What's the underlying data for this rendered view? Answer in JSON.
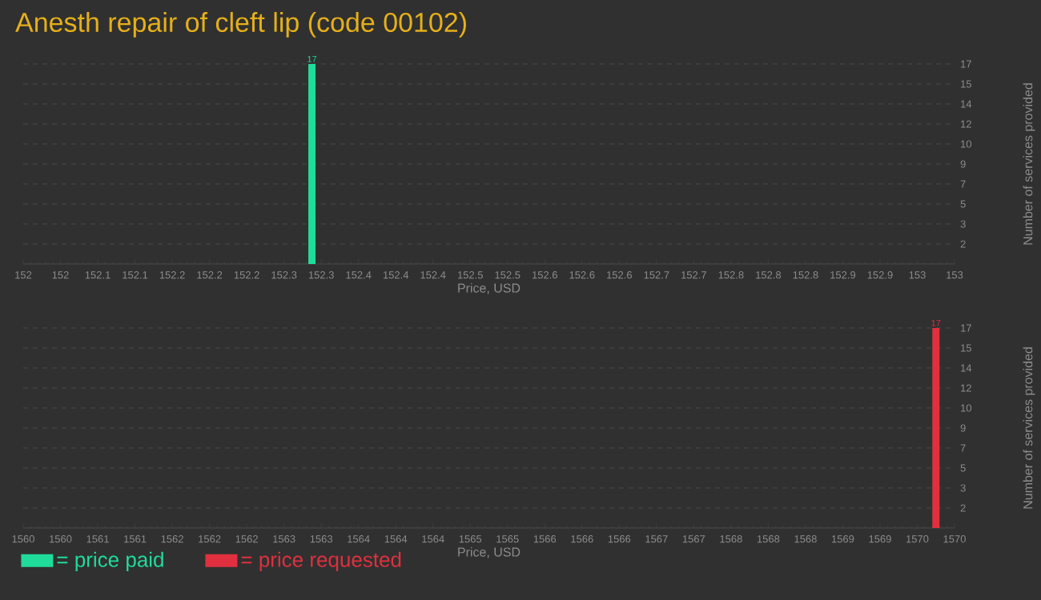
{
  "chart_data": [
    {
      "type": "bar",
      "title": "Anesth repair of cleft lip (code 00102)",
      "xlabel": "Price, USD",
      "ylabel": "Number of services provided",
      "x": [
        152.31
      ],
      "series": [
        {
          "name": "= price paid",
          "color": "#1fdc9b",
          "values": [
            17
          ]
        }
      ],
      "xlim": [
        152,
        153
      ],
      "xticks": [
        {
          "value": 152,
          "label": "152"
        },
        {
          "value": 152.04,
          "label": "152"
        },
        {
          "value": 152.08,
          "label": "152.1"
        },
        {
          "value": 152.12,
          "label": "152.1"
        },
        {
          "value": 152.16,
          "label": "152.2"
        },
        {
          "value": 152.2,
          "label": "152.2"
        },
        {
          "value": 152.24,
          "label": "152.2"
        },
        {
          "value": 152.28,
          "label": "152.3"
        },
        {
          "value": 152.32,
          "label": "152.3"
        },
        {
          "value": 152.36,
          "label": "152.4"
        },
        {
          "value": 152.4,
          "label": "152.4"
        },
        {
          "value": 152.44,
          "label": "152.4"
        },
        {
          "value": 152.48,
          "label": "152.5"
        },
        {
          "value": 152.52,
          "label": "152.5"
        },
        {
          "value": 152.56,
          "label": "152.6"
        },
        {
          "value": 152.6,
          "label": "152.6"
        },
        {
          "value": 152.64,
          "label": "152.6"
        },
        {
          "value": 152.68,
          "label": "152.7"
        },
        {
          "value": 152.72,
          "label": "152.7"
        },
        {
          "value": 152.76,
          "label": "152.8"
        },
        {
          "value": 152.8,
          "label": "152.8"
        },
        {
          "value": 152.84,
          "label": "152.8"
        },
        {
          "value": 152.88,
          "label": "152.9"
        },
        {
          "value": 152.92,
          "label": "152.9"
        },
        {
          "value": 152.96,
          "label": "153"
        },
        {
          "value": 153,
          "label": "153"
        }
      ],
      "ylim": [
        0,
        17
      ],
      "yticks": [
        {
          "value": 1.7,
          "label": "2"
        },
        {
          "value": 3.4,
          "label": "3"
        },
        {
          "value": 5.1,
          "label": "5"
        },
        {
          "value": 6.8,
          "label": "7"
        },
        {
          "value": 8.5,
          "label": "9"
        },
        {
          "value": 10.2,
          "label": "10"
        },
        {
          "value": 11.9,
          "label": "12"
        },
        {
          "value": 13.6,
          "label": "14"
        },
        {
          "value": 15.3,
          "label": "15"
        },
        {
          "value": 17,
          "label": "17"
        }
      ],
      "grid": "y",
      "data_labels": true,
      "legend": "bottom left"
    },
    {
      "type": "bar",
      "xlabel": "Price, USD",
      "ylabel": "Number of services provided",
      "x": [
        1569.8
      ],
      "series": [
        {
          "name": "= price requested",
          "color": "#e0303f",
          "values": [
            17
          ]
        }
      ],
      "xlim": [
        1560,
        1570
      ],
      "xticks": [
        {
          "value": 1560,
          "label": "1560"
        },
        {
          "value": 1560.4,
          "label": "1560"
        },
        {
          "value": 1560.8,
          "label": "1561"
        },
        {
          "value": 1561.2,
          "label": "1561"
        },
        {
          "value": 1561.6,
          "label": "1562"
        },
        {
          "value": 1562,
          "label": "1562"
        },
        {
          "value": 1562.4,
          "label": "1562"
        },
        {
          "value": 1562.8,
          "label": "1563"
        },
        {
          "value": 1563.2,
          "label": "1563"
        },
        {
          "value": 1563.6,
          "label": "1564"
        },
        {
          "value": 1564,
          "label": "1564"
        },
        {
          "value": 1564.4,
          "label": "1564"
        },
        {
          "value": 1564.8,
          "label": "1565"
        },
        {
          "value": 1565.2,
          "label": "1565"
        },
        {
          "value": 1565.6,
          "label": "1566"
        },
        {
          "value": 1566,
          "label": "1566"
        },
        {
          "value": 1566.4,
          "label": "1566"
        },
        {
          "value": 1566.8,
          "label": "1567"
        },
        {
          "value": 1567.2,
          "label": "1567"
        },
        {
          "value": 1567.6,
          "label": "1568"
        },
        {
          "value": 1568,
          "label": "1568"
        },
        {
          "value": 1568.4,
          "label": "1568"
        },
        {
          "value": 1568.8,
          "label": "1569"
        },
        {
          "value": 1569.2,
          "label": "1569"
        },
        {
          "value": 1569.6,
          "label": "1570"
        },
        {
          "value": 1570,
          "label": "1570"
        }
      ],
      "ylim": [
        0,
        17
      ],
      "yticks": [
        {
          "value": 1.7,
          "label": "2"
        },
        {
          "value": 3.4,
          "label": "3"
        },
        {
          "value": 5.1,
          "label": "5"
        },
        {
          "value": 6.8,
          "label": "7"
        },
        {
          "value": 8.5,
          "label": "9"
        },
        {
          "value": 10.2,
          "label": "10"
        },
        {
          "value": 11.9,
          "label": "12"
        },
        {
          "value": 13.6,
          "label": "14"
        },
        {
          "value": 15.3,
          "label": "15"
        },
        {
          "value": 17,
          "label": "17"
        }
      ],
      "grid": "y",
      "data_labels": true,
      "legend": "bottom left"
    }
  ]
}
